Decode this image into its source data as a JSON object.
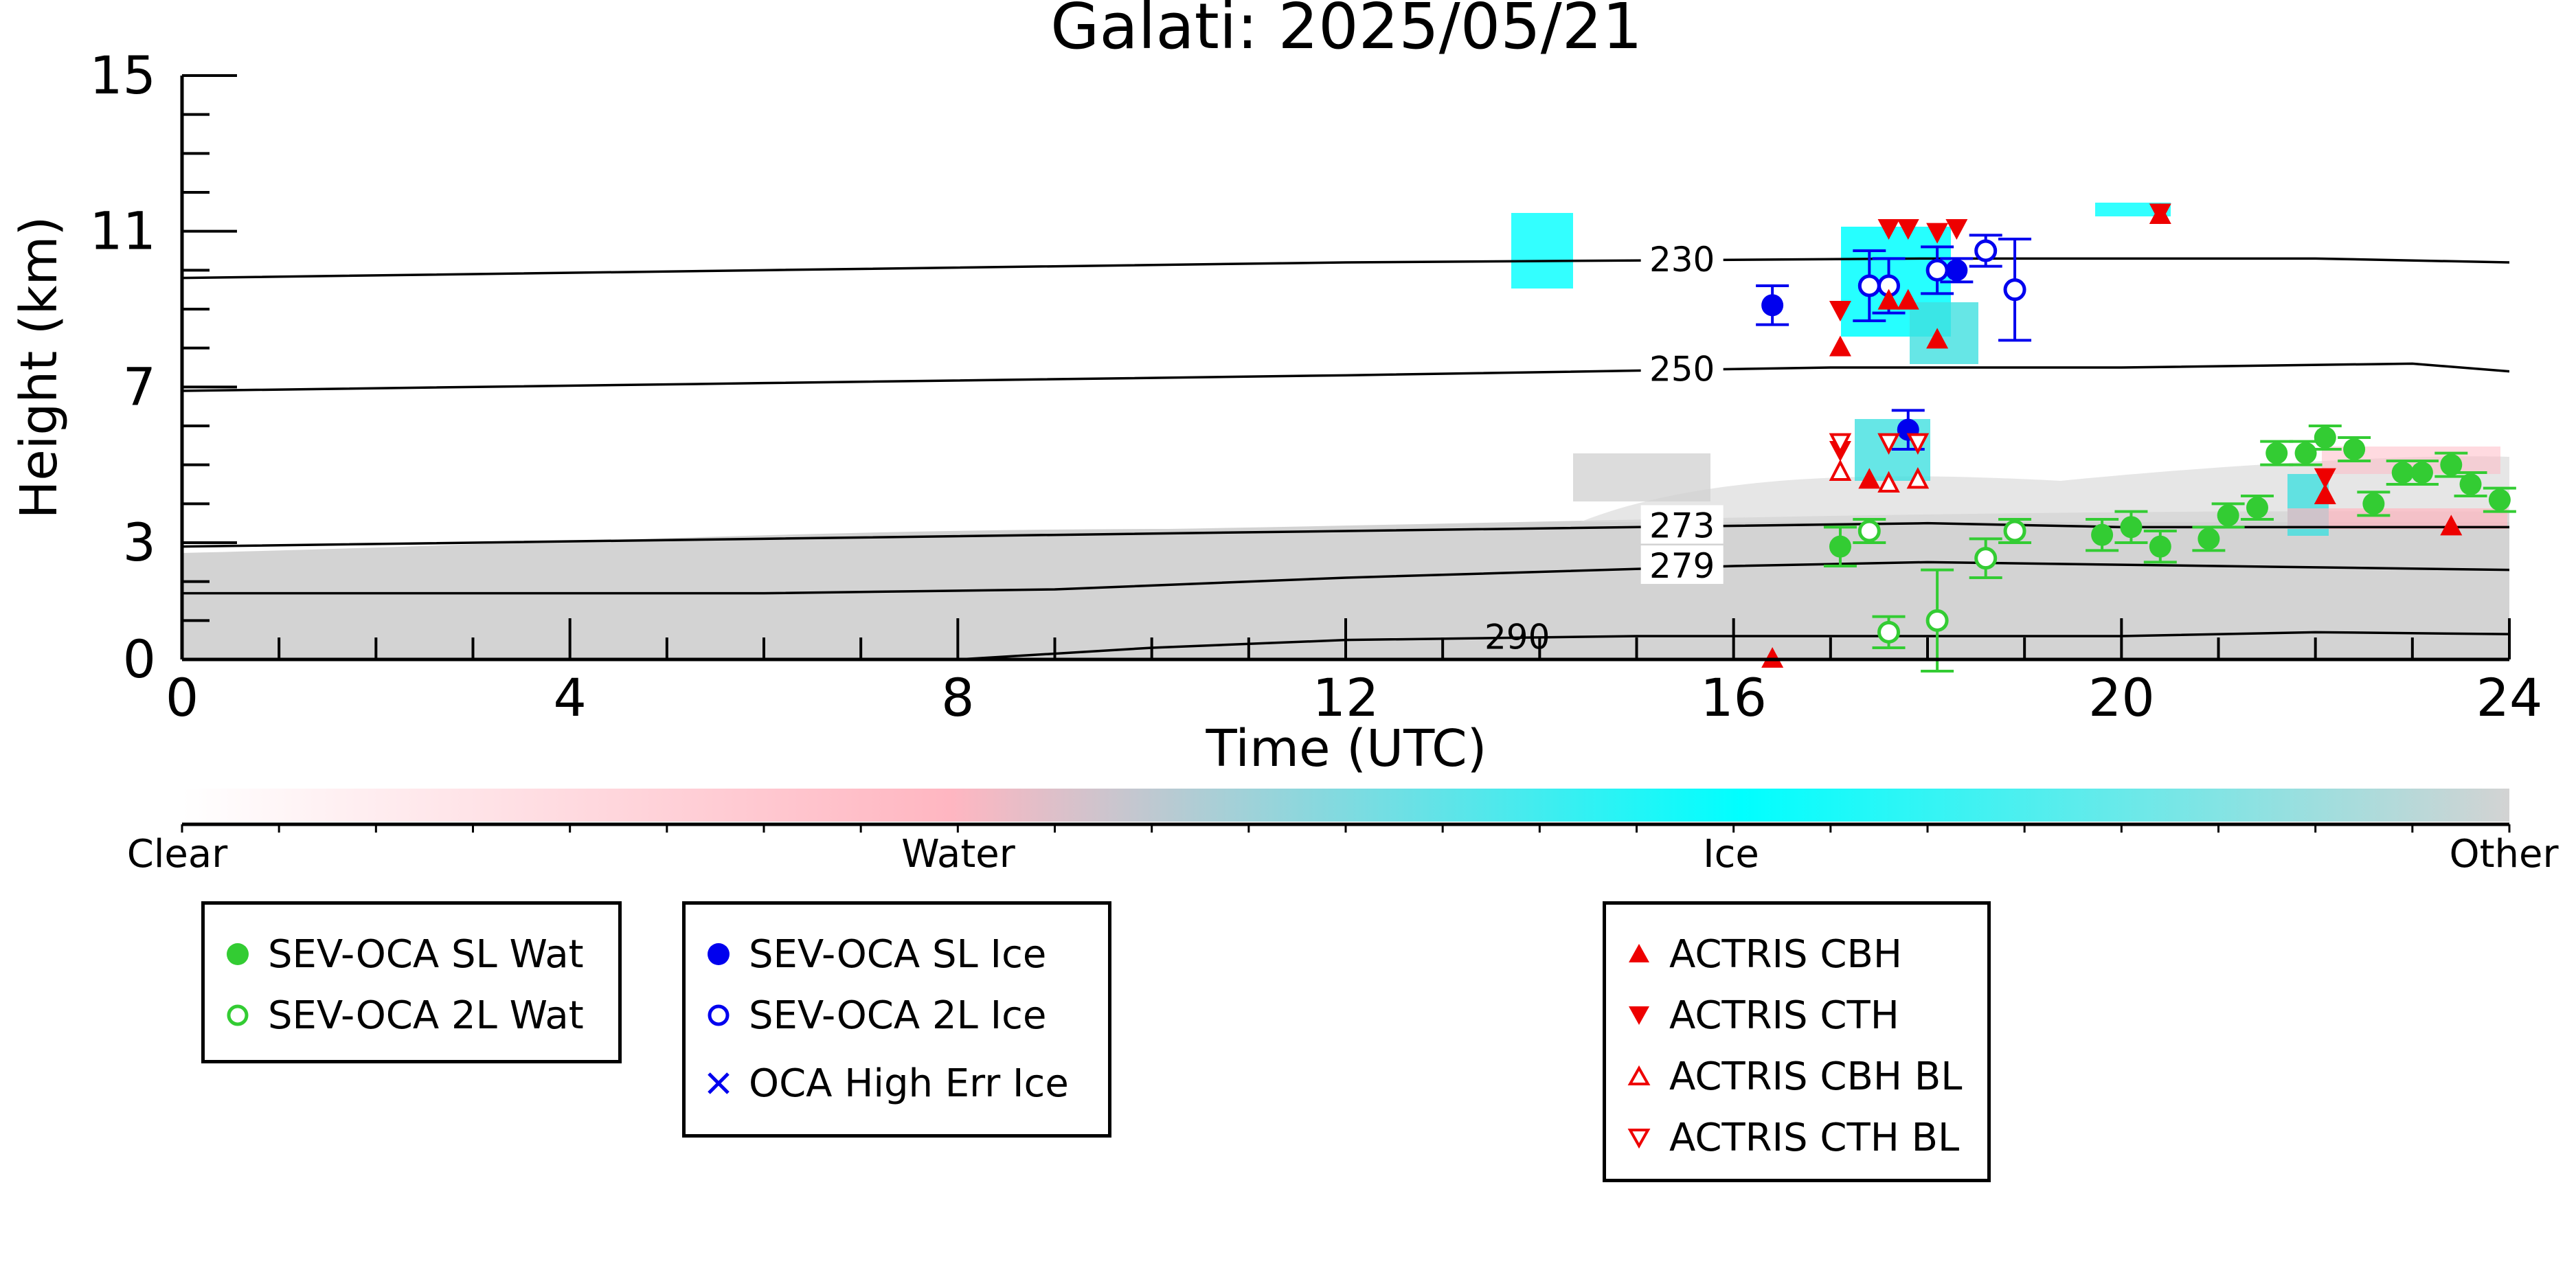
{
  "chart_data": {
    "type": "scatter",
    "title": "Galati: 2025/05/21",
    "xlabel": "Time (UTC)",
    "ylabel": "Height (km)",
    "xlim": [
      0,
      24
    ],
    "ylim": [
      0,
      15
    ],
    "x_ticks": [
      "0",
      "4",
      "8",
      "12",
      "16",
      "20",
      "24"
    ],
    "y_ticks": [
      "0",
      "3",
      "7",
      "11",
      "15"
    ],
    "isotherms": [
      {
        "label": "230",
        "points": [
          [
            0,
            9.8
          ],
          [
            6,
            10.0
          ],
          [
            12,
            10.2
          ],
          [
            18,
            10.3
          ],
          [
            22,
            10.3
          ],
          [
            24,
            10.2
          ]
        ]
      },
      {
        "label": "250",
        "points": [
          [
            0,
            6.9
          ],
          [
            6,
            7.1
          ],
          [
            12,
            7.3
          ],
          [
            17,
            7.5
          ],
          [
            20,
            7.5
          ],
          [
            23,
            7.6
          ],
          [
            24,
            7.4
          ]
        ]
      },
      {
        "label": "273",
        "points": [
          [
            0,
            2.9
          ],
          [
            6,
            3.1
          ],
          [
            12,
            3.3
          ],
          [
            18,
            3.5
          ],
          [
            20,
            3.4
          ],
          [
            24,
            3.4
          ]
        ]
      },
      {
        "label": "279",
        "points": [
          [
            0,
            1.7
          ],
          [
            6,
            1.7
          ],
          [
            9,
            1.8
          ],
          [
            12,
            2.1
          ],
          [
            16,
            2.4
          ],
          [
            18,
            2.5
          ],
          [
            21,
            2.4
          ],
          [
            24,
            2.3
          ]
        ]
      },
      {
        "label": "290",
        "points": [
          [
            8,
            0.0
          ],
          [
            10,
            0.3
          ],
          [
            12,
            0.5
          ],
          [
            15,
            0.6
          ],
          [
            18,
            0.6
          ],
          [
            20,
            0.6
          ],
          [
            22,
            0.7
          ],
          [
            24,
            0.65
          ]
        ]
      }
    ],
    "series": [
      {
        "name": "SEV-OCA SL Wat",
        "marker": "filled-circle",
        "color": "#33cc33",
        "points": [
          [
            17.1,
            2.9
          ],
          [
            19.8,
            3.2
          ],
          [
            20.1,
            3.4
          ],
          [
            20.4,
            2.9
          ],
          [
            20.9,
            3.1
          ],
          [
            21.1,
            3.7
          ],
          [
            21.4,
            3.9
          ],
          [
            21.6,
            5.3
          ],
          [
            21.9,
            5.3
          ],
          [
            22.1,
            5.7
          ],
          [
            22.4,
            5.4
          ],
          [
            22.6,
            4.0
          ],
          [
            22.9,
            4.8
          ],
          [
            23.1,
            4.8
          ],
          [
            23.4,
            5.0
          ],
          [
            23.6,
            4.5
          ],
          [
            23.9,
            4.1
          ]
        ],
        "err": [
          0.5,
          0.4,
          0.4,
          0.4,
          0.3,
          0.3,
          0.3,
          0.3,
          0.3,
          0.3,
          0.3,
          0.3,
          0.3,
          0.3,
          0.3,
          0.3,
          0.3
        ]
      },
      {
        "name": "SEV-OCA 2L Wat",
        "marker": "open-circle",
        "color": "#33cc33",
        "points": [
          [
            17.4,
            3.3
          ],
          [
            17.6,
            0.7
          ],
          [
            18.1,
            1.0
          ],
          [
            18.6,
            2.6
          ],
          [
            18.9,
            3.3
          ]
        ],
        "err": [
          0.3,
          0.4,
          1.3,
          0.5,
          0.3
        ]
      },
      {
        "name": "SEV-OCA SL Ice",
        "marker": "filled-circle",
        "color": "#0000ee",
        "points": [
          [
            16.4,
            9.1
          ],
          [
            17.8,
            5.9
          ],
          [
            18.3,
            10.0
          ]
        ],
        "err": [
          0.5,
          0.5,
          0.3
        ]
      },
      {
        "name": "SEV-OCA 2L Ice",
        "marker": "open-circle",
        "color": "#0000ee",
        "points": [
          [
            17.4,
            9.6
          ],
          [
            17.6,
            9.6
          ],
          [
            18.1,
            10.0
          ],
          [
            18.6,
            10.5
          ],
          [
            18.9,
            9.5
          ]
        ],
        "err": [
          0.9,
          0.7,
          0.6,
          0.4,
          1.3
        ]
      },
      {
        "name": "OCA High Err Ice",
        "marker": "x",
        "color": "#0000ee",
        "points": []
      },
      {
        "name": "ACTRIS CBH",
        "marker": "triangle-up",
        "color": "#ee0000",
        "points": [
          [
            16.4,
            0.0
          ],
          [
            17.1,
            8.0
          ],
          [
            17.4,
            4.6
          ],
          [
            17.6,
            9.2
          ],
          [
            17.8,
            9.2
          ],
          [
            18.1,
            8.2
          ],
          [
            20.4,
            11.4
          ],
          [
            22.1,
            4.2
          ],
          [
            23.4,
            3.4
          ]
        ]
      },
      {
        "name": "ACTRIS CTH",
        "marker": "triangle-down",
        "color": "#ee0000",
        "points": [
          [
            17.1,
            9.0
          ],
          [
            17.1,
            5.4
          ],
          [
            17.6,
            11.1
          ],
          [
            17.8,
            11.1
          ],
          [
            18.1,
            11.0
          ],
          [
            18.3,
            11.1
          ],
          [
            20.4,
            11.5
          ],
          [
            22.1,
            4.7
          ]
        ]
      },
      {
        "name": "ACTRIS CBH BL",
        "marker": "open-triangle-up",
        "color": "#ee0000",
        "points": [
          [
            17.1,
            4.8
          ],
          [
            17.6,
            4.5
          ],
          [
            17.9,
            4.6
          ]
        ]
      },
      {
        "name": "ACTRIS CTH BL",
        "marker": "open-triangle-down",
        "color": "#ee0000",
        "points": [
          [
            17.1,
            5.6
          ],
          [
            17.6,
            5.6
          ],
          [
            17.9,
            5.6
          ]
        ]
      }
    ],
    "colorbar": {
      "labels": [
        "Clear",
        "Water",
        "Ice",
        "Other"
      ],
      "colors": [
        "#ffffff",
        "#ffb6c1",
        "#00ffff",
        "#d3d3d3"
      ]
    },
    "legend": {
      "placement": "below",
      "group1": [
        "SEV-OCA SL Wat",
        "SEV-OCA 2L Wat"
      ],
      "group2": [
        "SEV-OCA SL Ice",
        "SEV-OCA 2L Ice",
        "OCA High Err Ice"
      ],
      "group3": [
        "ACTRIS CBH",
        "ACTRIS CTH",
        "ACTRIS CBH BL",
        "ACTRIS CTH BL"
      ]
    }
  }
}
